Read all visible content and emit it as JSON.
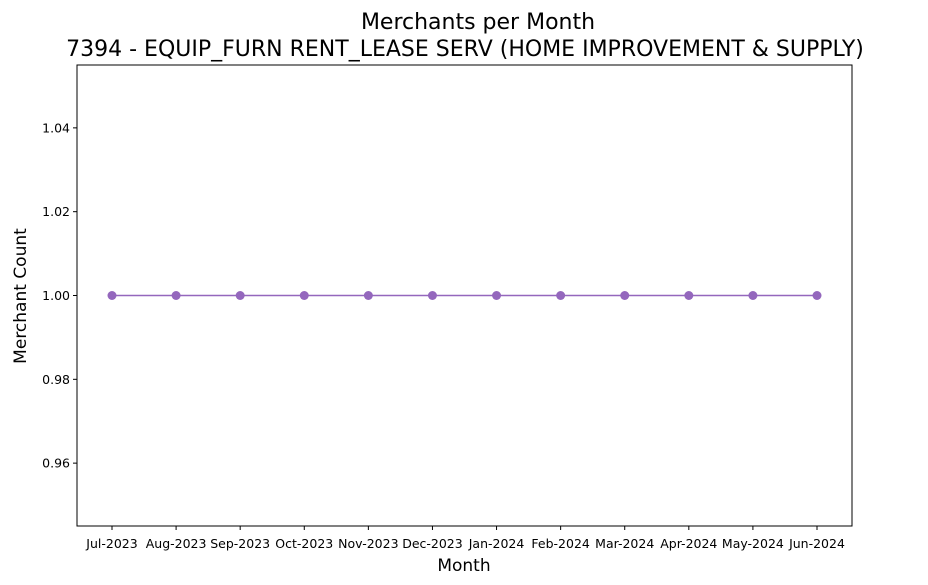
{
  "chart_data": {
    "type": "line",
    "title": "Merchants per Month",
    "subtitle": "7394 - EQUIP_FURN RENT_LEASE SERV (HOME IMPROVEMENT & SUPPLY)",
    "xlabel": "Month",
    "ylabel": "Merchant Count",
    "categories": [
      "Jul-2023",
      "Aug-2023",
      "Sep-2023",
      "Oct-2023",
      "Nov-2023",
      "Dec-2023",
      "Jan-2024",
      "Feb-2024",
      "Mar-2024",
      "Apr-2024",
      "May-2024",
      "Jun-2024"
    ],
    "series": [
      {
        "values": [
          1,
          1,
          1,
          1,
          1,
          1,
          1,
          1,
          1,
          1,
          1,
          1
        ],
        "color": "#9467bd",
        "marker": "circle"
      }
    ],
    "ylim": [
      0.945,
      1.055
    ],
    "yticks": [
      0.96,
      0.98,
      1.0,
      1.02,
      1.04
    ],
    "ytick_labels": [
      "0.96",
      "0.98",
      "1.00",
      "1.02",
      "1.04"
    ],
    "grid": false,
    "legend": "none"
  }
}
